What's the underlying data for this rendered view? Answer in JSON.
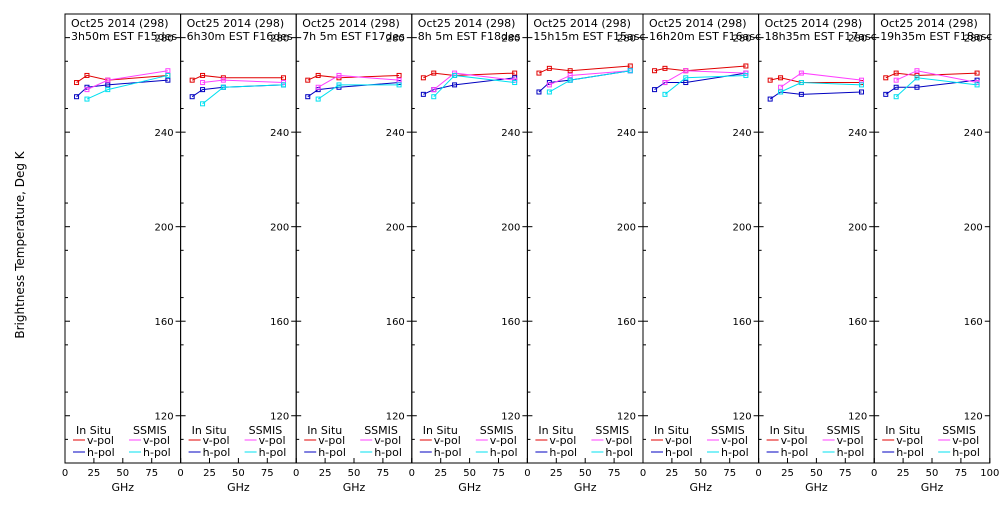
{
  "figure": {
    "ylabel": "Brightness Temperature, Deg K",
    "xlabel": "GHz",
    "legend": {
      "in_situ_heading": "In Situ",
      "ssmis_heading": "SSMIS",
      "v_pol": "v-pol",
      "h_pol": "h-pol"
    },
    "colors": {
      "in_situ_v": "#e00000",
      "in_situ_h": "#0000c0",
      "ssmis_v": "#ff40ff",
      "ssmis_h": "#00e0f0",
      "axes": "#000000"
    }
  },
  "chart_data": [
    {
      "type": "line",
      "title": "Oct25 2014 (298)",
      "subtitle": "3h50m EST F15des",
      "x": [
        10,
        19,
        37,
        89
      ],
      "xlim": [
        0,
        100
      ],
      "ylim": [
        100,
        290
      ],
      "xticks": [
        0,
        25,
        50,
        75,
        100
      ],
      "yticks": [
        120,
        160,
        200,
        240,
        280
      ],
      "series": [
        {
          "name": "In Situ v-pol",
          "values": [
            261,
            264,
            262,
            264
          ]
        },
        {
          "name": "In Situ h-pol",
          "values": [
            255,
            259,
            260,
            262
          ]
        },
        {
          "name": "SSMIS v-pol",
          "values": [
            null,
            258,
            262,
            266
          ]
        },
        {
          "name": "SSMIS h-pol",
          "values": [
            null,
            254,
            258,
            264
          ]
        }
      ]
    },
    {
      "type": "line",
      "title": "Oct25 2014 (298)",
      "subtitle": "6h30m EST F16des",
      "x": [
        10,
        19,
        37,
        89
      ],
      "xlim": [
        0,
        100
      ],
      "ylim": [
        100,
        290
      ],
      "xticks": [
        0,
        25,
        50,
        75,
        100
      ],
      "yticks": [
        120,
        160,
        200,
        240,
        280
      ],
      "series": [
        {
          "name": "In Situ v-pol",
          "values": [
            262,
            264,
            263,
            263
          ]
        },
        {
          "name": "In Situ h-pol",
          "values": [
            255,
            258,
            259,
            260
          ]
        },
        {
          "name": "SSMIS v-pol",
          "values": [
            null,
            261,
            262,
            261
          ]
        },
        {
          "name": "SSMIS h-pol",
          "values": [
            null,
            252,
            259,
            260
          ]
        }
      ]
    },
    {
      "type": "line",
      "title": "Oct25 2014 (298)",
      "subtitle": "7h 5m  EST F17des",
      "x": [
        10,
        19,
        37,
        89
      ],
      "xlim": [
        0,
        100
      ],
      "ylim": [
        100,
        290
      ],
      "xticks": [
        0,
        25,
        50,
        75,
        100
      ],
      "yticks": [
        120,
        160,
        200,
        240,
        280
      ],
      "series": [
        {
          "name": "In Situ v-pol",
          "values": [
            262,
            264,
            263,
            264
          ]
        },
        {
          "name": "In Situ h-pol",
          "values": [
            255,
            258,
            259,
            261
          ]
        },
        {
          "name": "SSMIS v-pol",
          "values": [
            null,
            259,
            264,
            262
          ]
        },
        {
          "name": "SSMIS h-pol",
          "values": [
            null,
            254,
            260,
            260
          ]
        }
      ]
    },
    {
      "type": "line",
      "title": "Oct25 2014 (298)",
      "subtitle": "8h 5m  EST F18des",
      "x": [
        10,
        19,
        37,
        89
      ],
      "xlim": [
        0,
        100
      ],
      "ylim": [
        100,
        290
      ],
      "xticks": [
        0,
        25,
        50,
        75,
        100
      ],
      "yticks": [
        120,
        160,
        200,
        240,
        280
      ],
      "series": [
        {
          "name": "In Situ v-pol",
          "values": [
            263,
            265,
            264,
            265
          ]
        },
        {
          "name": "In Situ h-pol",
          "values": [
            256,
            258,
            260,
            263
          ]
        },
        {
          "name": "SSMIS v-pol",
          "values": [
            null,
            258,
            265,
            262
          ]
        },
        {
          "name": "SSMIS h-pol",
          "values": [
            null,
            255,
            264,
            261
          ]
        }
      ]
    },
    {
      "type": "line",
      "title": "Oct25 2014 (298)",
      "subtitle": "15h15m EST F15asc",
      "x": [
        10,
        19,
        37,
        89
      ],
      "xlim": [
        0,
        100
      ],
      "ylim": [
        100,
        290
      ],
      "xticks": [
        0,
        25,
        50,
        75,
        100
      ],
      "yticks": [
        120,
        160,
        200,
        240,
        280
      ],
      "series": [
        {
          "name": "In Situ v-pol",
          "values": [
            265,
            267,
            266,
            268
          ]
        },
        {
          "name": "In Situ h-pol",
          "values": [
            257,
            261,
            262,
            266
          ]
        },
        {
          "name": "SSMIS v-pol",
          "values": [
            null,
            260,
            264,
            266
          ]
        },
        {
          "name": "SSMIS h-pol",
          "values": [
            null,
            257,
            262,
            266
          ]
        }
      ]
    },
    {
      "type": "line",
      "title": "Oct25 2014 (298)",
      "subtitle": "16h20m EST F16asc",
      "x": [
        10,
        19,
        37,
        89
      ],
      "xlim": [
        0,
        100
      ],
      "ylim": [
        100,
        290
      ],
      "xticks": [
        0,
        25,
        50,
        75,
        100
      ],
      "yticks": [
        120,
        160,
        200,
        240,
        280
      ],
      "series": [
        {
          "name": "In Situ v-pol",
          "values": [
            266,
            267,
            266,
            268
          ]
        },
        {
          "name": "In Situ h-pol",
          "values": [
            258,
            261,
            261,
            265
          ]
        },
        {
          "name": "SSMIS v-pol",
          "values": [
            null,
            261,
            266,
            265
          ]
        },
        {
          "name": "SSMIS h-pol",
          "values": [
            null,
            256,
            263,
            264
          ]
        }
      ]
    },
    {
      "type": "line",
      "title": "Oct25 2014 (298)",
      "subtitle": "18h35m EST F17asc",
      "x": [
        10,
        19,
        37,
        89
      ],
      "xlim": [
        0,
        100
      ],
      "ylim": [
        100,
        290
      ],
      "xticks": [
        0,
        25,
        50,
        75,
        100
      ],
      "yticks": [
        120,
        160,
        200,
        240,
        280
      ],
      "series": [
        {
          "name": "In Situ v-pol",
          "values": [
            262,
            263,
            261,
            261
          ]
        },
        {
          "name": "In Situ h-pol",
          "values": [
            254,
            257,
            256,
            257
          ]
        },
        {
          "name": "SSMIS v-pol",
          "values": [
            null,
            259,
            265,
            262
          ]
        },
        {
          "name": "SSMIS h-pol",
          "values": [
            null,
            257,
            261,
            260
          ]
        }
      ]
    },
    {
      "type": "line",
      "title": "Oct25 2014 (298)",
      "subtitle": "19h35m EST F18asc",
      "x": [
        10,
        19,
        37,
        89
      ],
      "xlim": [
        0,
        100
      ],
      "ylim": [
        100,
        290
      ],
      "xticks": [
        0,
        25,
        50,
        75,
        100
      ],
      "yticks": [
        120,
        160,
        200,
        240,
        280
      ],
      "series": [
        {
          "name": "In Situ v-pol",
          "values": [
            263,
            265,
            264,
            265
          ]
        },
        {
          "name": "In Situ h-pol",
          "values": [
            256,
            259,
            259,
            262
          ]
        },
        {
          "name": "SSMIS v-pol",
          "values": [
            null,
            262,
            266,
            261
          ]
        },
        {
          "name": "SSMIS h-pol",
          "values": [
            null,
            255,
            263,
            260
          ]
        }
      ]
    }
  ]
}
